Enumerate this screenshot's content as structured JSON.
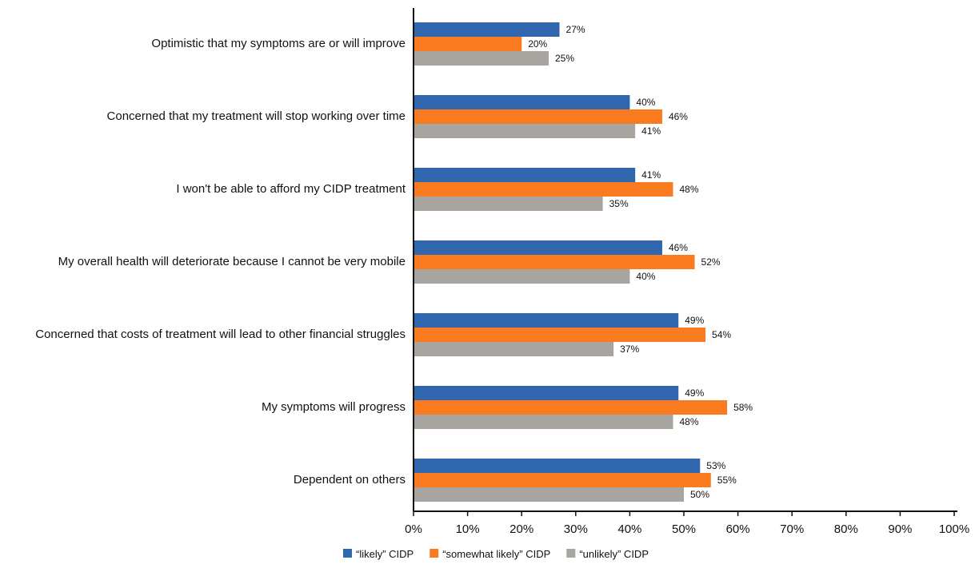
{
  "chart_data": {
    "type": "bar",
    "orientation": "horizontal",
    "categories": [
      "Optimistic that my symptoms are or will improve",
      "Concerned that my treatment will stop working over time",
      "I won't be able to afford my CIDP treatment",
      "My overall health will deteriorate because I cannot be very mobile",
      "Concerned that costs of treatment will lead to other financial struggles",
      "My symptoms will progress",
      "Dependent on others"
    ],
    "series": [
      {
        "name": "“likely” CIDP",
        "color": "#2F66AE",
        "values": [
          27,
          40,
          41,
          46,
          49,
          49,
          53
        ]
      },
      {
        "name": "“somewhat likely” CIDP",
        "color": "#F97A1F",
        "values": [
          20,
          46,
          48,
          52,
          54,
          58,
          55
        ]
      },
      {
        "name": "“unlikely” CIDP",
        "color": "#A8A5A0",
        "values": [
          25,
          41,
          35,
          40,
          37,
          48,
          50
        ]
      }
    ],
    "value_suffix": "%",
    "xlim": [
      0,
      100
    ],
    "xticks": [
      "0%",
      "10%",
      "20%",
      "30%",
      "40%",
      "50%",
      "60%",
      "70%",
      "80%",
      "90%",
      "100%"
    ],
    "grid": false,
    "legend_position": "bottom-center"
  }
}
